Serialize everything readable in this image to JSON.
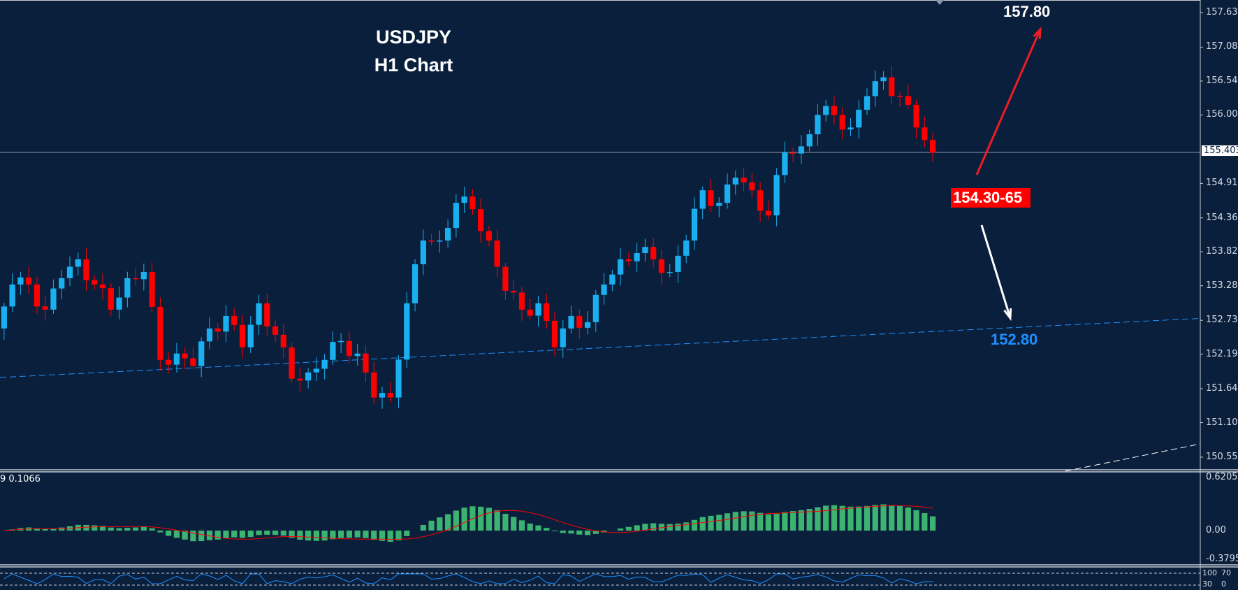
{
  "chart_data": {
    "type": "candlestick",
    "title": "USDJPY",
    "subtitle": "H1 Chart",
    "y_ticks": [
      "157.630",
      "157.080",
      "156.540",
      "156.000",
      "154.910",
      "154.360",
      "153.820",
      "153.280",
      "152.730",
      "152.190",
      "151.640",
      "151.100",
      "150.550"
    ],
    "ylim": [
      150.55,
      157.63
    ],
    "current_price": "155.403",
    "closes": [
      152.6,
      153.3,
      153.3,
      152.9,
      153.4,
      153.7,
      153.3,
      152.9,
      153.4,
      153.5,
      152.1,
      152.2,
      152.0,
      152.6,
      152.8,
      152.3,
      153.0,
      152.5,
      151.8,
      151.9,
      152.1,
      152.4,
      152.2,
      151.5,
      151.5,
      153.0,
      154.0,
      154.0,
      154.6,
      154.5,
      154.0,
      153.2,
      152.9,
      153.0,
      152.3,
      152.8,
      152.7,
      153.3,
      153.7,
      153.8,
      153.7,
      153.5,
      154.0,
      154.8,
      154.6,
      155.0,
      154.8,
      154.4,
      155.4,
      155.5,
      156.0,
      156.0,
      155.8,
      156.3,
      156.6,
      156.3,
      155.8,
      155.4
    ],
    "colors": {
      "bull": "#1ab0f0",
      "bear": "#ff0000",
      "background": "#0a1f3c",
      "histogram": "#3cb371",
      "signal": "#ff0000",
      "rsi": "#1e90ff"
    },
    "annotations": {
      "target_up": "157.80",
      "zone": "154.30-65",
      "target_down": "152.80"
    },
    "support_line": {
      "start_price": 151.82,
      "end_price": 152.76,
      "color": "#1e90ff",
      "style": "dashed"
    },
    "macd": {
      "label": "9 0.1066",
      "ticks": [
        "0.6205",
        "0.00",
        "-0.3795"
      ],
      "ylim": [
        -0.3795,
        0.6205
      ]
    },
    "rsi": {
      "ticks": [
        "100",
        "70",
        "30",
        "0"
      ],
      "levels": [
        70,
        30
      ]
    }
  }
}
